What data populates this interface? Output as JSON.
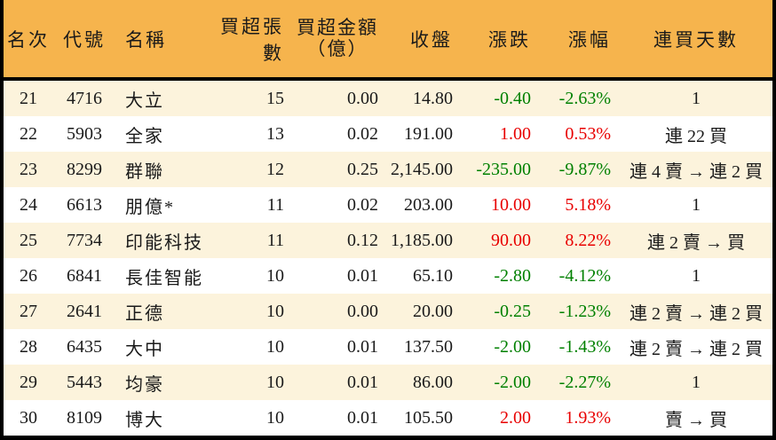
{
  "colors": {
    "header_bg": "#F6B44D",
    "row_alt_bg": "#FCF3DC",
    "row_bg": "#FFFFFF",
    "up_color": "#E80000",
    "down_color": "#008000",
    "border_color": "#000000",
    "text_color": "#1A1A1A"
  },
  "chart_data": {
    "type": "table",
    "title": "",
    "legend": "red = price up, green = price down",
    "columns": [
      {
        "key": "rank",
        "label": "名次",
        "align": "center"
      },
      {
        "key": "code",
        "label": "代號",
        "align": "center"
      },
      {
        "key": "name",
        "label": "名稱",
        "align": "left"
      },
      {
        "key": "lots",
        "label": "買超張數",
        "align": "right"
      },
      {
        "key": "amount",
        "label": "買超金額",
        "label2": "（億）",
        "align": "right"
      },
      {
        "key": "close",
        "label": "收盤",
        "align": "right"
      },
      {
        "key": "change",
        "label": "漲跌",
        "align": "right",
        "colored": true
      },
      {
        "key": "change_pct",
        "label": "漲幅",
        "align": "right",
        "colored": true
      },
      {
        "key": "streak",
        "label": "連買天數",
        "align": "center"
      }
    ],
    "rows": [
      {
        "rank": "21",
        "code": "4716",
        "name": "大立",
        "lots": "15",
        "amount": "0.00",
        "close": "14.80",
        "change": "-0.40",
        "change_pct": "-2.63%",
        "trend": "down",
        "streak": "1"
      },
      {
        "rank": "22",
        "code": "5903",
        "name": "全家",
        "lots": "13",
        "amount": "0.02",
        "close": "191.00",
        "change": "1.00",
        "change_pct": "0.53%",
        "trend": "up",
        "streak": "連 22 買"
      },
      {
        "rank": "23",
        "code": "8299",
        "name": "群聯",
        "lots": "12",
        "amount": "0.25",
        "close": "2,145.00",
        "change": "-235.00",
        "change_pct": "-9.87%",
        "trend": "down",
        "streak": "連 4 賣 → 連 2 買"
      },
      {
        "rank": "24",
        "code": "6613",
        "name": "朋億*",
        "lots": "11",
        "amount": "0.02",
        "close": "203.00",
        "change": "10.00",
        "change_pct": "5.18%",
        "trend": "up",
        "streak": "1"
      },
      {
        "rank": "25",
        "code": "7734",
        "name": "印能科技",
        "lots": "11",
        "amount": "0.12",
        "close": "1,185.00",
        "change": "90.00",
        "change_pct": "8.22%",
        "trend": "up",
        "streak": "連 2 賣 → 買"
      },
      {
        "rank": "26",
        "code": "6841",
        "name": "長佳智能",
        "lots": "10",
        "amount": "0.01",
        "close": "65.10",
        "change": "-2.80",
        "change_pct": "-4.12%",
        "trend": "down",
        "streak": "1"
      },
      {
        "rank": "27",
        "code": "2641",
        "name": "正德",
        "lots": "10",
        "amount": "0.00",
        "close": "20.00",
        "change": "-0.25",
        "change_pct": "-1.23%",
        "trend": "down",
        "streak": "連 2 賣 → 連 2 買"
      },
      {
        "rank": "28",
        "code": "6435",
        "name": "大中",
        "lots": "10",
        "amount": "0.01",
        "close": "137.50",
        "change": "-2.00",
        "change_pct": "-1.43%",
        "trend": "down",
        "streak": "連 2 賣 → 連 2 買"
      },
      {
        "rank": "29",
        "code": "5443",
        "name": "均豪",
        "lots": "10",
        "amount": "0.01",
        "close": "86.00",
        "change": "-2.00",
        "change_pct": "-2.27%",
        "trend": "down",
        "streak": "1"
      },
      {
        "rank": "30",
        "code": "8109",
        "name": "博大",
        "lots": "10",
        "amount": "0.01",
        "close": "105.50",
        "change": "2.00",
        "change_pct": "1.93%",
        "trend": "up",
        "streak": "賣 → 買"
      }
    ]
  }
}
